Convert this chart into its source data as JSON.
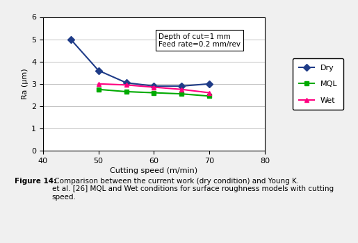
{
  "x_dry": [
    45,
    50,
    55,
    60,
    65,
    70
  ],
  "y_dry": [
    5.0,
    3.6,
    3.05,
    2.9,
    2.9,
    3.0
  ],
  "x_mql": [
    50,
    55,
    60,
    65,
    70
  ],
  "y_mql": [
    2.75,
    2.65,
    2.6,
    2.55,
    2.45
  ],
  "x_wet": [
    50,
    55,
    60,
    65,
    70
  ],
  "y_wet": [
    3.0,
    2.95,
    2.85,
    2.75,
    2.6
  ],
  "color_dry": "#1F3C88",
  "color_mql": "#00AA00",
  "color_wet": "#FF0080",
  "xlim": [
    40,
    80
  ],
  "ylim": [
    0,
    6
  ],
  "xticks": [
    40,
    50,
    60,
    70,
    80
  ],
  "yticks": [
    0,
    1,
    2,
    3,
    4,
    5,
    6
  ],
  "xlabel": "Cutting speed (m/min)",
  "ylabel": "Ra (μm)",
  "annotation_line1": "Depth of cut=1 mm",
  "annotation_line2": "Feed rate=0.2 mm/rev",
  "bg_color": "#E8EDDC",
  "plot_bg": "#FFFFFF",
  "caption_bold": "Figure 14:",
  "caption_normal": " Comparison between the current work (dry condition) and Young K.\net al. [26] MQL and Wet conditions for surface roughness models with cutting\nspeed.",
  "legend_dry": "Dry",
  "legend_mql": "MQL",
  "legend_wet": "Wet"
}
